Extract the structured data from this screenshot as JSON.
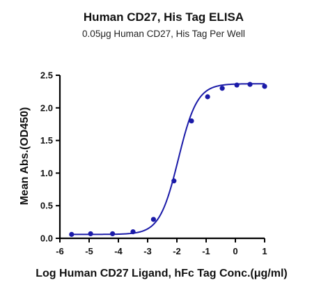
{
  "chart_data": {
    "type": "scatter",
    "title": "Human CD27, His Tag ELISA",
    "subtitle": "0.05μg Human CD27, His Tag Per Well",
    "xlabel": "Log Human CD27 Ligand, hFc Tag Conc.(μg/ml)",
    "ylabel": "Mean Abs.(OD450)",
    "xlim": [
      -6,
      1
    ],
    "ylim": [
      0,
      2.5
    ],
    "x_ticks": [
      "-6",
      "-5",
      "-4",
      "-3",
      "-2",
      "-1",
      "0",
      "1"
    ],
    "y_ticks": [
      "0.0",
      "0.5",
      "1.0",
      "1.5",
      "2.0",
      "2.5"
    ],
    "grid": false,
    "legend": "none",
    "series": [
      {
        "x": [
          -5.6,
          -4.95,
          -4.2,
          -3.5,
          -2.8,
          -2.1,
          -1.5,
          -0.95,
          -0.45,
          0.05,
          0.5,
          1.0
        ],
        "y": [
          0.06,
          0.07,
          0.07,
          0.1,
          0.29,
          0.88,
          1.8,
          2.17,
          2.3,
          2.35,
          2.36,
          2.33
        ],
        "color": "#1a1aa8"
      }
    ],
    "fit_curve": {
      "model": "4PL",
      "bottom": 0.06,
      "top": 2.37,
      "logEC50": -1.95,
      "hill": 1.35,
      "color": "#1a1aa8"
    }
  }
}
